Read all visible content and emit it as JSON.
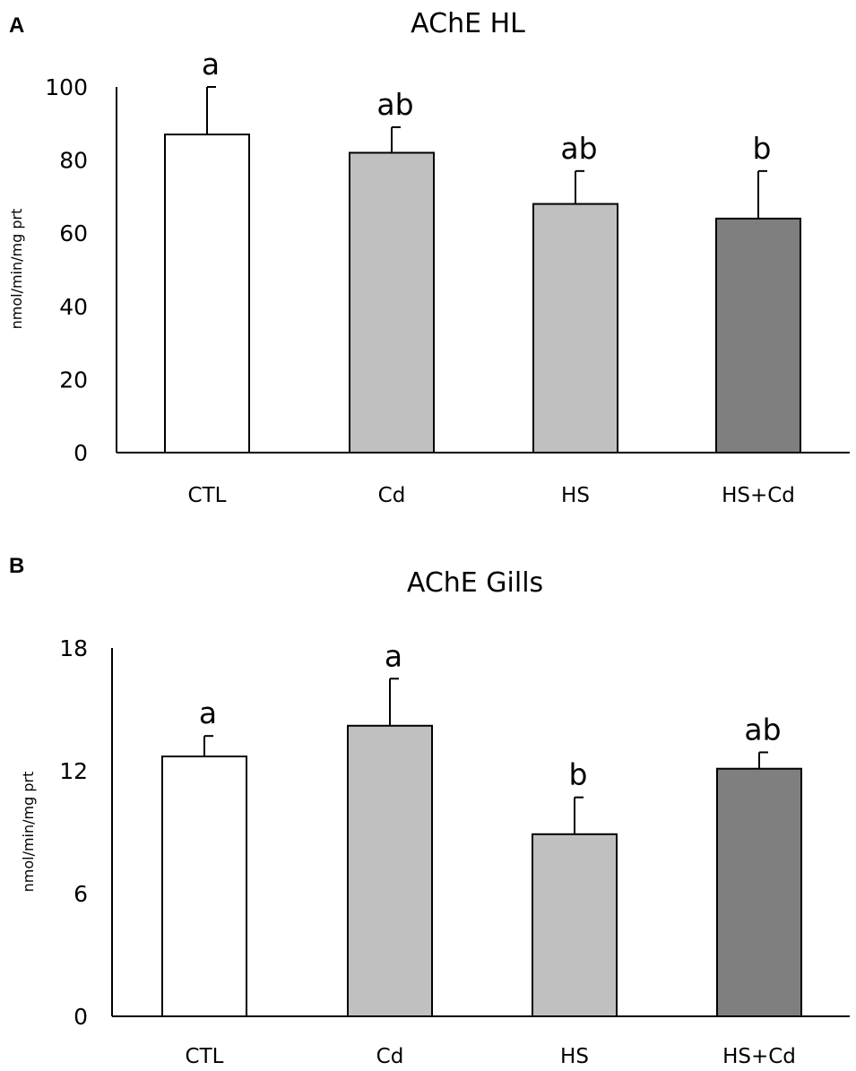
{
  "colors": {
    "CTL": "#ffffff",
    "Cd": "#c0c0c0",
    "HS": "#c0c0c0",
    "HS+Cd": "#7f7f7f",
    "stroke": "#000000"
  },
  "chart_data": [
    {
      "panel": "A",
      "type": "bar",
      "title": "AChE HL",
      "xlabel": "",
      "ylabel": "nmol/min/mg prt",
      "ylim": [
        0,
        100
      ],
      "yticks": [
        0,
        20,
        40,
        60,
        80,
        100
      ],
      "categories": [
        "CTL",
        "Cd",
        "HS",
        "HS+Cd"
      ],
      "values": [
        87,
        82,
        68,
        64
      ],
      "errors": [
        13,
        7,
        9,
        13
      ],
      "significance": [
        "a",
        "ab",
        "ab",
        "b"
      ]
    },
    {
      "panel": "B",
      "type": "bar",
      "title": "AChE Gills",
      "xlabel": "",
      "ylabel": "nmol/min/mg prt",
      "ylim": [
        0,
        18
      ],
      "yticks": [
        0,
        6,
        12,
        18
      ],
      "categories": [
        "CTL",
        "Cd",
        "HS",
        "HS+Cd"
      ],
      "values": [
        12.7,
        14.2,
        8.9,
        12.1
      ],
      "errors": [
        1.0,
        2.3,
        1.8,
        0.8
      ],
      "significance": [
        "a",
        "a",
        "b",
        "ab"
      ]
    }
  ]
}
